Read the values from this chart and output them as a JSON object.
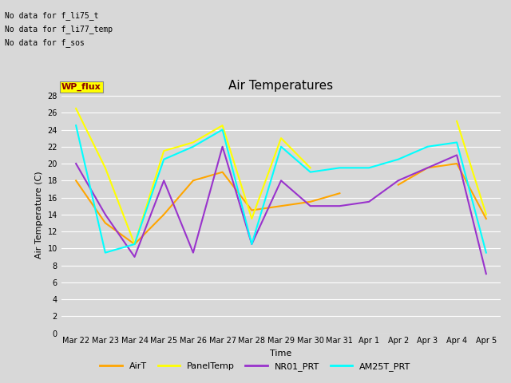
{
  "title": "Air Temperatures",
  "xlabel": "Time",
  "ylabel": "Air Temperature (C)",
  "ylim": [
    0,
    28
  ],
  "yticks": [
    0,
    2,
    4,
    6,
    8,
    10,
    12,
    14,
    16,
    18,
    20,
    22,
    24,
    26,
    28
  ],
  "bg_color": "#d8d8d8",
  "plot_bg_color": "#d8d8d8",
  "annotations": [
    "No data for f_li75_t",
    "No data for f_li77_temp",
    "No data for f_sos"
  ],
  "wp_flux_label": "WP_flux",
  "x_labels": [
    "Mar 22",
    "Mar 23",
    "Mar 24",
    "Mar 25",
    "Mar 26",
    "Mar 27",
    "Mar 28",
    "Mar 29",
    "Mar 30",
    "Mar 31",
    "Apr 1",
    "Apr 2",
    "Apr 3",
    "Apr 4",
    "Apr 5"
  ],
  "series": {
    "AirT": {
      "color": "#ffa500",
      "x": [
        0,
        1,
        2,
        3,
        4,
        5,
        6,
        7,
        8,
        9,
        10,
        11,
        12,
        13,
        14
      ],
      "y": [
        18.0,
        13.0,
        10.5,
        14.0,
        18.0,
        19.0,
        14.5,
        15.0,
        15.5,
        16.5,
        null,
        17.5,
        19.5,
        20.0,
        13.5
      ]
    },
    "PanelTemp": {
      "color": "#ffff00",
      "x": [
        0,
        1,
        2,
        3,
        4,
        5,
        6,
        7,
        8,
        9,
        10,
        11,
        12,
        13,
        14
      ],
      "y": [
        26.5,
        19.5,
        10.5,
        21.5,
        22.5,
        24.5,
        13.5,
        23.0,
        19.5,
        null,
        null,
        null,
        null,
        25.0,
        14.0
      ]
    },
    "NR01_PRT": {
      "color": "#9933cc",
      "x": [
        0,
        1,
        2,
        3,
        4,
        5,
        6,
        7,
        8,
        9,
        10,
        11,
        12,
        13,
        14
      ],
      "y": [
        20.0,
        14.0,
        9.0,
        18.0,
        9.5,
        22.0,
        10.5,
        18.0,
        15.0,
        15.0,
        15.5,
        18.0,
        19.5,
        21.0,
        7.0
      ]
    },
    "AM25T_PRT": {
      "color": "#00ffff",
      "x": [
        0,
        1,
        2,
        3,
        4,
        5,
        6,
        7,
        8,
        9,
        10,
        11,
        12,
        13,
        14
      ],
      "y": [
        24.5,
        9.5,
        10.5,
        20.5,
        22.0,
        24.0,
        10.5,
        22.0,
        19.0,
        19.5,
        19.5,
        20.5,
        22.0,
        22.5,
        9.5
      ]
    }
  },
  "legend_order": [
    "AirT",
    "PanelTemp",
    "NR01_PRT",
    "AM25T_PRT"
  ]
}
